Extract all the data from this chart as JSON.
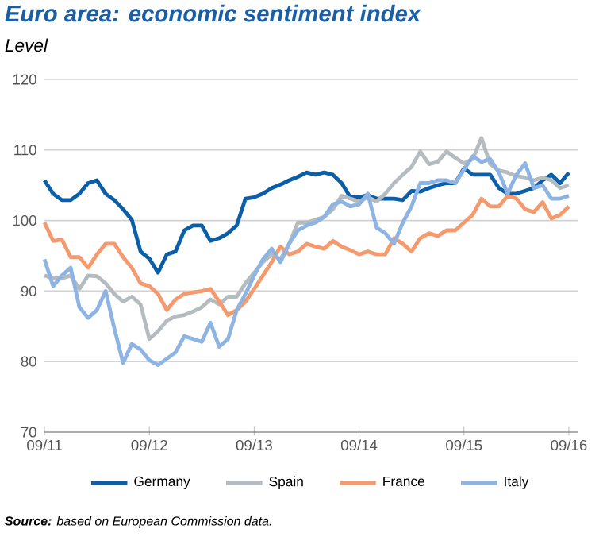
{
  "chart_data": {
    "type": "line",
    "title": "Euro area: economic sentiment index",
    "subtitle": "Level",
    "annotations": [
      "**Source:** based on European Commission data."
    ],
    "x": [
      "2011-09",
      "2011-10",
      "2011-11",
      "2011-12",
      "2012-01",
      "2012-02",
      "2012-03",
      "2012-04",
      "2012-05",
      "2012-06",
      "2012-07",
      "2012-08",
      "2012-09",
      "2012-10",
      "2012-11",
      "2012-12",
      "2013-01",
      "2013-02",
      "2013-03",
      "2013-04",
      "2013-05",
      "2013-06",
      "2013-07",
      "2013-08",
      "2013-09",
      "2013-10",
      "2013-11",
      "2013-12",
      "2014-01",
      "2014-02",
      "2014-03",
      "2014-04",
      "2014-05",
      "2014-06",
      "2014-07",
      "2014-08",
      "2014-09",
      "2014-10",
      "2014-11",
      "2014-12",
      "2015-01",
      "2015-02",
      "2015-03",
      "2015-04",
      "2015-05",
      "2015-06",
      "2015-07",
      "2015-08",
      "2015-09",
      "2015-10",
      "2015-11",
      "2015-12",
      "2016-01",
      "2016-02",
      "2016-03",
      "2016-04",
      "2016-05",
      "2016-06",
      "2016-07",
      "2016-08",
      "2016-09"
    ],
    "series": [
      {
        "name": "Germany",
        "color": "#0a5fa8",
        "values": [
          105.7,
          103.8,
          102.9,
          102.9,
          103.8,
          105.3,
          105.7,
          103.8,
          102.9,
          101.6,
          100.1,
          95.6,
          94.6,
          92.6,
          95.2,
          95.6,
          98.6,
          99.3,
          99.3,
          97.1,
          97.5,
          98.2,
          99.3,
          103.1,
          103.3,
          103.8,
          104.6,
          105.1,
          105.7,
          106.2,
          106.8,
          106.5,
          106.8,
          106.5,
          105.3,
          103.3,
          103.3,
          103.6,
          103.1,
          103.1,
          103.1,
          102.9,
          104.2,
          104.1,
          104.6,
          105.0,
          105.3,
          105.3,
          107.4,
          106.5,
          106.5,
          106.5,
          104.6,
          103.8,
          103.8,
          104.2,
          104.6,
          105.7,
          106.5,
          105.3,
          106.8
        ]
      },
      {
        "name": "Spain",
        "color": "#b4bcc0",
        "values": [
          92.2,
          91.8,
          91.8,
          92.2,
          90.3,
          92.2,
          92.1,
          91.1,
          89.6,
          88.5,
          89.2,
          88.1,
          83.2,
          84.3,
          85.8,
          86.4,
          86.6,
          87.1,
          87.7,
          88.8,
          88.1,
          89.2,
          89.2,
          91.1,
          92.6,
          94.1,
          95.2,
          94.5,
          96.7,
          99.7,
          99.7,
          100.1,
          100.5,
          101.6,
          103.5,
          103.1,
          102.7,
          103.3,
          102.7,
          103.8,
          105.3,
          106.5,
          107.6,
          109.8,
          108.0,
          108.3,
          109.8,
          108.9,
          108.1,
          108.7,
          111.7,
          108.0,
          107.1,
          106.8,
          106.3,
          106.1,
          105.7,
          106.1,
          105.7,
          104.6,
          105.0
        ]
      },
      {
        "name": "France",
        "color": "#f59a6e",
        "values": [
          99.7,
          97.1,
          97.3,
          94.8,
          94.8,
          93.3,
          95.2,
          96.7,
          96.7,
          94.8,
          93.3,
          91.1,
          90.7,
          89.6,
          87.3,
          88.8,
          89.6,
          89.8,
          90.0,
          90.3,
          88.5,
          86.6,
          87.3,
          88.5,
          90.3,
          92.2,
          94.1,
          96.3,
          95.2,
          95.6,
          96.7,
          96.3,
          96.0,
          97.1,
          96.3,
          95.8,
          95.2,
          95.6,
          95.2,
          95.2,
          97.5,
          96.7,
          95.6,
          97.5,
          98.2,
          97.8,
          98.6,
          98.6,
          99.7,
          100.8,
          103.1,
          102.0,
          102.0,
          103.5,
          103.1,
          101.6,
          101.2,
          102.6,
          100.3,
          100.8,
          102.0
        ]
      },
      {
        "name": "Italy",
        "color": "#8db4e2",
        "values": [
          94.5,
          90.7,
          92.2,
          93.3,
          87.7,
          86.2,
          87.3,
          90.0,
          84.7,
          79.8,
          82.5,
          81.7,
          80.2,
          79.5,
          80.4,
          81.3,
          83.6,
          83.2,
          82.8,
          85.5,
          82.1,
          83.2,
          87.3,
          89.6,
          92.2,
          94.5,
          96.0,
          94.1,
          96.7,
          98.6,
          99.3,
          99.7,
          100.5,
          102.3,
          102.7,
          102.0,
          102.3,
          103.8,
          99.0,
          98.2,
          96.7,
          99.7,
          102.0,
          105.3,
          105.3,
          105.7,
          105.7,
          105.3,
          107.2,
          109.1,
          108.3,
          108.7,
          106.8,
          103.8,
          106.5,
          108.1,
          104.6,
          105.0,
          103.1,
          103.1,
          103.5
        ]
      }
    ],
    "xlim": [
      "2011-09",
      "2016-10"
    ],
    "xticks": [
      {
        "value": "2011-09",
        "label": "09/11"
      },
      {
        "value": "2012-09",
        "label": "09/12"
      },
      {
        "value": "2013-09",
        "label": "09/13"
      },
      {
        "value": "2014-09",
        "label": "09/14"
      },
      {
        "value": "2015-09",
        "label": "09/15"
      },
      {
        "value": "2016-09",
        "label": "09/16"
      }
    ],
    "ylim": [
      70,
      120
    ],
    "yticks": [
      70,
      80,
      90,
      100,
      110,
      120
    ],
    "grid": "y",
    "legend": "bottom",
    "marker": "none",
    "line_style": "solid"
  }
}
